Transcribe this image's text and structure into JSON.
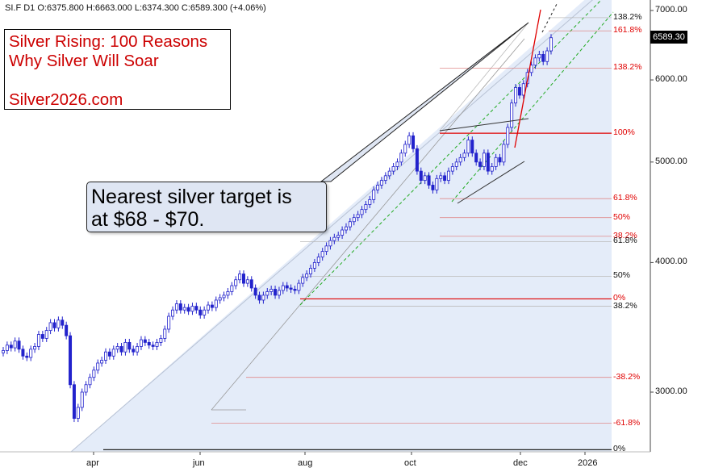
{
  "header": {
    "text": "SI.F  D1  O:6375.800  H:6663.000  L:6374.300  C:6589.300  (+4.06%)"
  },
  "promo": {
    "line1": "Silver Rising: 100 Reasons",
    "line2": "Why Silver Will Soar",
    "line3": "Silver2026.com"
  },
  "callout": {
    "line1": "Nearest silver target is",
    "line2": "at $68 - $70."
  },
  "price_label": "6589.30",
  "colors": {
    "candle": "#2222cc",
    "fib_red": "#e00000",
    "fib_line": "#e08a8a",
    "fib_gray": "#999999",
    "channel_fill": "#dbe6f7",
    "green_dash": "#22aa22",
    "background": "#ffffff"
  },
  "chart_data": {
    "type": "candlestick",
    "symbol": "SI.F",
    "timeframe": "D1",
    "scale": "log",
    "ylim": [
      2500,
      7000
    ],
    "y_ticks": [
      "3000.00",
      "4000.00",
      "5000.00",
      "6000.00",
      "7000.00"
    ],
    "x_ticks": [
      "apr",
      "jun",
      "aug",
      "oct",
      "dec",
      "2026"
    ],
    "ohlc_last": {
      "open": 6375.8,
      "high": 6663.0,
      "low": 6374.3,
      "close": 6589.3,
      "change": "+4.06%"
    },
    "closes_approx": [
      3290,
      3330,
      3310,
      3360,
      3300,
      3250,
      3240,
      3300,
      3320,
      3410,
      3380,
      3440,
      3500,
      3460,
      3520,
      3480,
      3400,
      3050,
      2830,
      2900,
      3000,
      3050,
      3100,
      3150,
      3200,
      3220,
      3280,
      3250,
      3300,
      3320,
      3280,
      3350,
      3300,
      3280,
      3320,
      3370,
      3350,
      3330,
      3320,
      3350,
      3380,
      3450,
      3550,
      3600,
      3650,
      3600,
      3620,
      3590,
      3630,
      3600,
      3560,
      3600,
      3640,
      3620,
      3680,
      3700,
      3720,
      3750,
      3800,
      3850,
      3900,
      3820,
      3850,
      3780,
      3720,
      3680,
      3720,
      3750,
      3770,
      3720,
      3760,
      3800,
      3780,
      3770,
      3760,
      3820,
      3870,
      3900,
      3950,
      4000,
      4050,
      4100,
      4150,
      4200,
      4230,
      4250,
      4300,
      4330,
      4380,
      4420,
      4450,
      4500,
      4550,
      4600,
      4700,
      4750,
      4800,
      4850,
      4900,
      4950,
      5000,
      5100,
      5200,
      5300,
      5150,
      4900,
      4800,
      4850,
      4750,
      4700,
      4820,
      4850,
      4800,
      4900,
      4950,
      5000,
      5050,
      5100,
      5250,
      5100,
      5000,
      4950,
      5100,
      4900,
      4950,
      5050,
      5000,
      5200,
      5400,
      5700,
      5900,
      5800,
      5950,
      6100,
      6200,
      6300,
      6350,
      6250,
      6400,
      6589.3
    ],
    "fib_levels": [
      {
        "label": "138.2%",
        "value": 6890,
        "color": "gray"
      },
      {
        "label": "161.8%",
        "value": 6690,
        "color": "red"
      },
      {
        "label": "138.2%",
        "value": 6160,
        "color": "red"
      },
      {
        "label": "100%",
        "value": 5330,
        "color": "red"
      },
      {
        "label": "61.8%",
        "value": 4610,
        "color": "red"
      },
      {
        "label": "50%",
        "value": 4420,
        "color": "red"
      },
      {
        "label": "38.2%",
        "value": 4240,
        "color": "red"
      },
      {
        "label": "61.8%",
        "value": 4190,
        "color": "gray"
      },
      {
        "label": "50%",
        "value": 3880,
        "color": "gray"
      },
      {
        "label": "0%",
        "value": 3690,
        "color": "red"
      },
      {
        "label": "38.2%",
        "value": 3630,
        "color": "gray"
      },
      {
        "label": "-38.2%",
        "value": 3100,
        "color": "red"
      },
      {
        "label": "-61.8%",
        "value": 2800,
        "color": "red"
      },
      {
        "label": "0%",
        "value": 2640,
        "color": "gray"
      }
    ]
  }
}
